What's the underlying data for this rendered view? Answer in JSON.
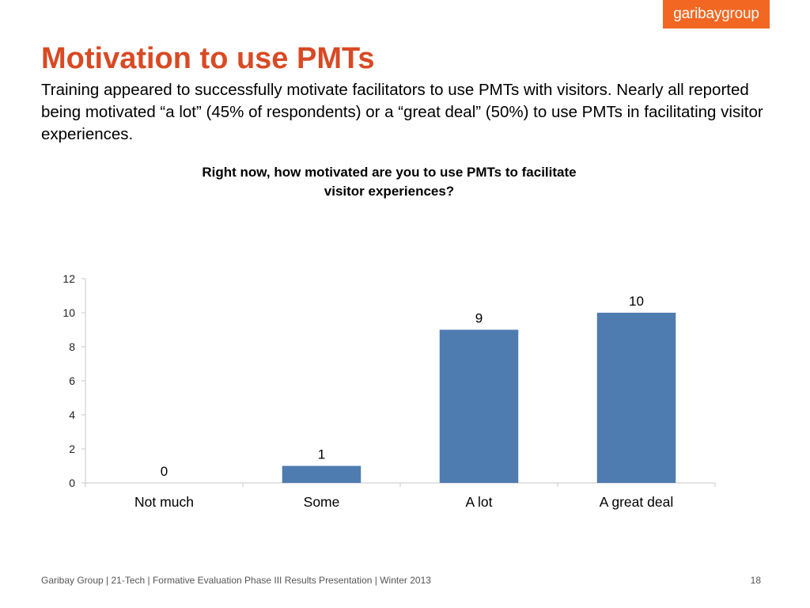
{
  "logo": {
    "part1": "garibay",
    "part2": "group",
    "color": "#f26722"
  },
  "title": "Motivation to use PMTs",
  "intro": "Training appeared to successfully motivate facilitators to use PMTs with visitors. Nearly all reported being motivated “a lot” (45% of respondents) or a “great deal” (50%) to use PMTs in facilitating visitor experiences.",
  "chart_data": {
    "type": "bar",
    "title": "Right now, how motivated are you to use PMTs to facilitate visitor experiences?",
    "categories": [
      "Not much",
      "Some",
      "A lot",
      "A great deal"
    ],
    "values": [
      0,
      1,
      9,
      10
    ],
    "data_labels": [
      "0",
      "1",
      "9",
      "10"
    ],
    "ylim": [
      0,
      12
    ],
    "yticks": [
      "0",
      "2",
      "4",
      "6",
      "8",
      "10",
      "12"
    ],
    "xlabel": "",
    "ylabel": "",
    "grid": false,
    "legend": "none",
    "bar_color": "#4f7cb0",
    "axis_color": "#c8c8c8"
  },
  "footer": {
    "text": "Garibay Group | 21-Tech | Formative Evaluation Phase III Results Presentation | Winter 2013",
    "page_number": "18"
  },
  "colors": {
    "title": "#d84a24",
    "accent": "#f26722"
  }
}
